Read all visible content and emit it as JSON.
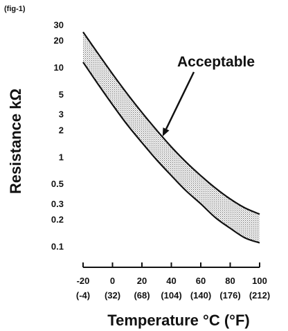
{
  "figure_label": "(fig-1)",
  "chart_data": {
    "type": "area",
    "title": "",
    "xlabel": "Temperature °C (°F)",
    "ylabel": "Resistance kΩ",
    "x_scale": "linear",
    "y_scale": "log",
    "xlim": [
      -20,
      100
    ],
    "ylim": [
      0.1,
      30
    ],
    "grid": false,
    "x_ticks": [
      {
        "value": -20,
        "label": "-20",
        "sublabel": "(-4)"
      },
      {
        "value": 0,
        "label": "0",
        "sublabel": "(32)"
      },
      {
        "value": 20,
        "label": "20",
        "sublabel": "(68)"
      },
      {
        "value": 40,
        "label": "40",
        "sublabel": "(104)"
      },
      {
        "value": 60,
        "label": "60",
        "sublabel": "(140)"
      },
      {
        "value": 80,
        "label": "80",
        "sublabel": "(176)"
      },
      {
        "value": 100,
        "label": "100",
        "sublabel": "(212)"
      }
    ],
    "y_ticks": [
      {
        "value": 30,
        "label": "30"
      },
      {
        "value": 20,
        "label": "20"
      },
      {
        "value": 10,
        "label": "10"
      },
      {
        "value": 5,
        "label": "5"
      },
      {
        "value": 3,
        "label": "3"
      },
      {
        "value": 2,
        "label": "2"
      },
      {
        "value": 1,
        "label": "1"
      },
      {
        "value": 0.5,
        "label": "0.5"
      },
      {
        "value": 0.3,
        "label": "0.3"
      },
      {
        "value": 0.2,
        "label": "0.2"
      },
      {
        "value": 0.1,
        "label": "0.1"
      }
    ],
    "series": [
      {
        "role": "upper",
        "x": [
          -20,
          -10,
          0,
          10,
          20,
          30,
          40,
          50,
          60,
          70,
          80,
          90,
          100
        ],
        "y": [
          25,
          14.5,
          8.5,
          5.1,
          3.15,
          2.0,
          1.3,
          0.88,
          0.62,
          0.45,
          0.34,
          0.27,
          0.23
        ]
      },
      {
        "role": "lower",
        "x": [
          -20,
          -10,
          0,
          10,
          20,
          30,
          40,
          50,
          60,
          70,
          80,
          90,
          100
        ],
        "y": [
          11.5,
          6.6,
          3.85,
          2.3,
          1.45,
          0.93,
          0.62,
          0.42,
          0.3,
          0.21,
          0.16,
          0.125,
          0.11
        ]
      }
    ],
    "band_label": "Acceptable",
    "annotations": [
      {
        "text": "Acceptable",
        "points_to": {
          "x": 34,
          "y": 1.7
        }
      }
    ],
    "colors": {
      "line": "#111111",
      "band_fill": "#bdbdbd"
    }
  }
}
